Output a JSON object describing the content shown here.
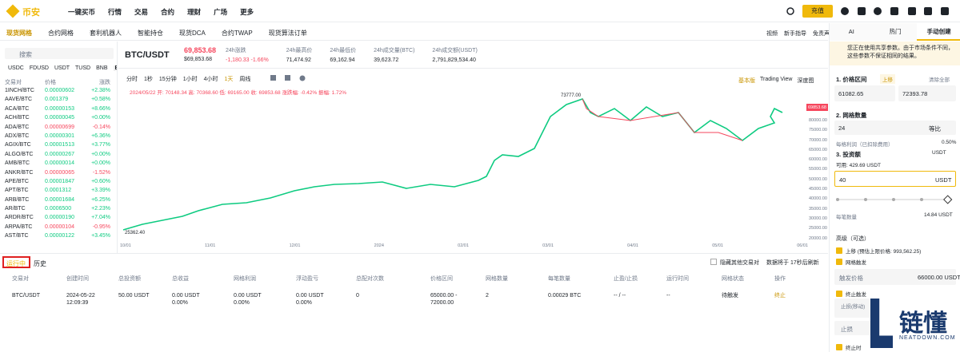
{
  "nav": {
    "logo": "币安",
    "items": [
      "一键买币",
      "行情",
      "交易",
      "合约",
      "理财",
      "广场",
      "更多"
    ],
    "deposit": "充值"
  },
  "tabs": {
    "items": [
      "现货网格",
      "合约网格",
      "套利机器人",
      "智能持仓",
      "现货DCA",
      "合约TWAP",
      "现货算法订单"
    ],
    "links": [
      "视频",
      "新手指导",
      "免责声明"
    ]
  },
  "market": {
    "search": "搜索",
    "quotes": [
      "USDC",
      "FDUSD",
      "USDT",
      "TUSD",
      "BNB",
      "BTC"
    ],
    "headers": [
      "交易对",
      "价格",
      "涨跌"
    ],
    "rows": [
      {
        "pair": "1INCH/BTC",
        "price": "0.00000602",
        "change": "+2.38%"
      },
      {
        "pair": "AAVE/BTC",
        "price": "0.001379",
        "change": "+0.58%"
      },
      {
        "pair": "ACA/BTC",
        "price": "0.00000153",
        "change": "+8.66%"
      },
      {
        "pair": "ACH/BTC",
        "price": "0.00000045",
        "change": "+0.00%"
      },
      {
        "pair": "ADA/BTC",
        "price": "0.00000699",
        "change": "-0.14%"
      },
      {
        "pair": "ADX/BTC",
        "price": "0.00000301",
        "change": "+6.36%"
      },
      {
        "pair": "AGIX/BTC",
        "price": "0.00001513",
        "change": "+3.77%"
      },
      {
        "pair": "ALGO/BTC",
        "price": "0.00000267",
        "change": "+0.00%"
      },
      {
        "pair": "AMB/BTC",
        "price": "0.00000014",
        "change": "+0.00%"
      },
      {
        "pair": "ANKR/BTC",
        "price": "0.00000065",
        "change": "-1.52%"
      },
      {
        "pair": "APE/BTC",
        "price": "0.00001847",
        "change": "+0.60%"
      },
      {
        "pair": "APT/BTC",
        "price": "0.0001312",
        "change": "+3.39%"
      },
      {
        "pair": "ARB/BTC",
        "price": "0.00001684",
        "change": "+6.25%"
      },
      {
        "pair": "AR/BTC",
        "price": "0.0006500",
        "change": "+2.23%"
      },
      {
        "pair": "ARDR/BTC",
        "price": "0.00000190",
        "change": "+7.04%"
      },
      {
        "pair": "ARPA/BTC",
        "price": "0.00000104",
        "change": "-0.95%"
      },
      {
        "pair": "AST/BTC",
        "price": "0.00000122",
        "change": "+3.45%"
      }
    ]
  },
  "ticker": {
    "pair": "BTC/USDT",
    "price": "69,853.68",
    "price_usd": "$69,853.68",
    "stats": [
      {
        "label": "24h涨跌",
        "value": "-1,180.33 -1.66%"
      },
      {
        "label": "24h最高价",
        "value": "71,474.92"
      },
      {
        "label": "24h最低价",
        "value": "69,162.94"
      },
      {
        "label": "24h成交量(BTC)",
        "value": "39,623.72"
      },
      {
        "label": "24h成交额(USDT)",
        "value": "2,791,829,534.40"
      }
    ]
  },
  "chart": {
    "intervals": [
      "分时",
      "1秒",
      "15分钟",
      "1小时",
      "4小时",
      "1天",
      "周线"
    ],
    "views": [
      "基本版",
      "Trading View",
      "深度图"
    ],
    "ohlc": "2024/05/22 开: 70148.34 高: 70368.60 低: 69165.00 收: 69853.68 涨跌幅: -0.42% 振幅: 1.72%",
    "high_label": "73777.00",
    "low_label": "25362.40",
    "last_price": "69853.68",
    "yaxis": [
      "80000.00",
      "75000.00",
      "70000.00",
      "65000.00",
      "60000.00",
      "55000.00",
      "50000.00",
      "45000.00",
      "40000.00",
      "35000.00",
      "30000.00",
      "25000.00",
      "20000.00"
    ],
    "xaxis": [
      "10/01",
      "11/01",
      "12/01",
      "2024",
      "02/01",
      "03/01",
      "04/01",
      "05/01",
      "06/01"
    ]
  },
  "orders": {
    "tabs": [
      "运行中",
      "历史"
    ],
    "hide_others": "隐藏其他交易对",
    "refresh": "数据将于 17秒后刷新",
    "headers": [
      "交易对",
      "创建时间",
      "总投资额",
      "总收益",
      "网格利润",
      "浮动盈亏",
      "总配对次数",
      "价格区间",
      "网格数量",
      "每笔数量",
      "止盈/止损",
      "运行时间",
      "网格状态",
      "操作"
    ],
    "rows": [
      [
        [
          "BTC/USDT"
        ],
        [
          "2024-05-22",
          "12:09:39"
        ],
        [
          "50.00 USDT"
        ],
        [
          "0.00 USDT",
          "0.00%"
        ],
        [
          "0.00 USDT",
          "0.00%"
        ],
        [
          "0.00 USDT",
          "0.00%"
        ],
        [
          "0"
        ],
        [
          "65000.00 -",
          "72000.00"
        ],
        [
          "2"
        ],
        [
          "0.00029 BTC"
        ],
        [
          "-- / --"
        ],
        [
          "--"
        ],
        [
          "待触发"
        ],
        [
          "终止"
        ]
      ]
    ]
  },
  "panel": {
    "tabs": [
      "AI",
      "热门",
      "手动创建"
    ],
    "notice": "您正在使用共享参数。由于市场条件不同，这些参数不保证相同的结果。",
    "range_label": "1. 价格区间",
    "shift_badge": "上移",
    "clear": "清除全部",
    "low": "61082.65",
    "high": "72393.78",
    "grid_label": "2. 网格数量",
    "grid_count": "24",
    "grid_mode": "等比",
    "profit_label": "每格利润（已扣除费用）",
    "profit": "0.50%",
    "invest_label": "3. 投资额",
    "invest_currency": "USDT",
    "available": "可用: 429.69 USDT",
    "amount": "40",
    "amount_unit": "USDT",
    "per_label": "每笔数量",
    "per_value": "14.84 USDT",
    "advanced": "高级（可选）",
    "opt_shift": "上移 (预估上限价格: 993,562.25)",
    "opt_trigger": "网格触发",
    "trigger_label": "触发价格",
    "trigger_value": "66000.00 USDT",
    "opt_stop": "终止触发",
    "stop_loss_move": "止损(移动)",
    "stop_loss": "止损",
    "opt_stop_time": "终止时"
  },
  "watermark": {
    "brand": "链懂",
    "site": "NEATDOWN.COM"
  }
}
